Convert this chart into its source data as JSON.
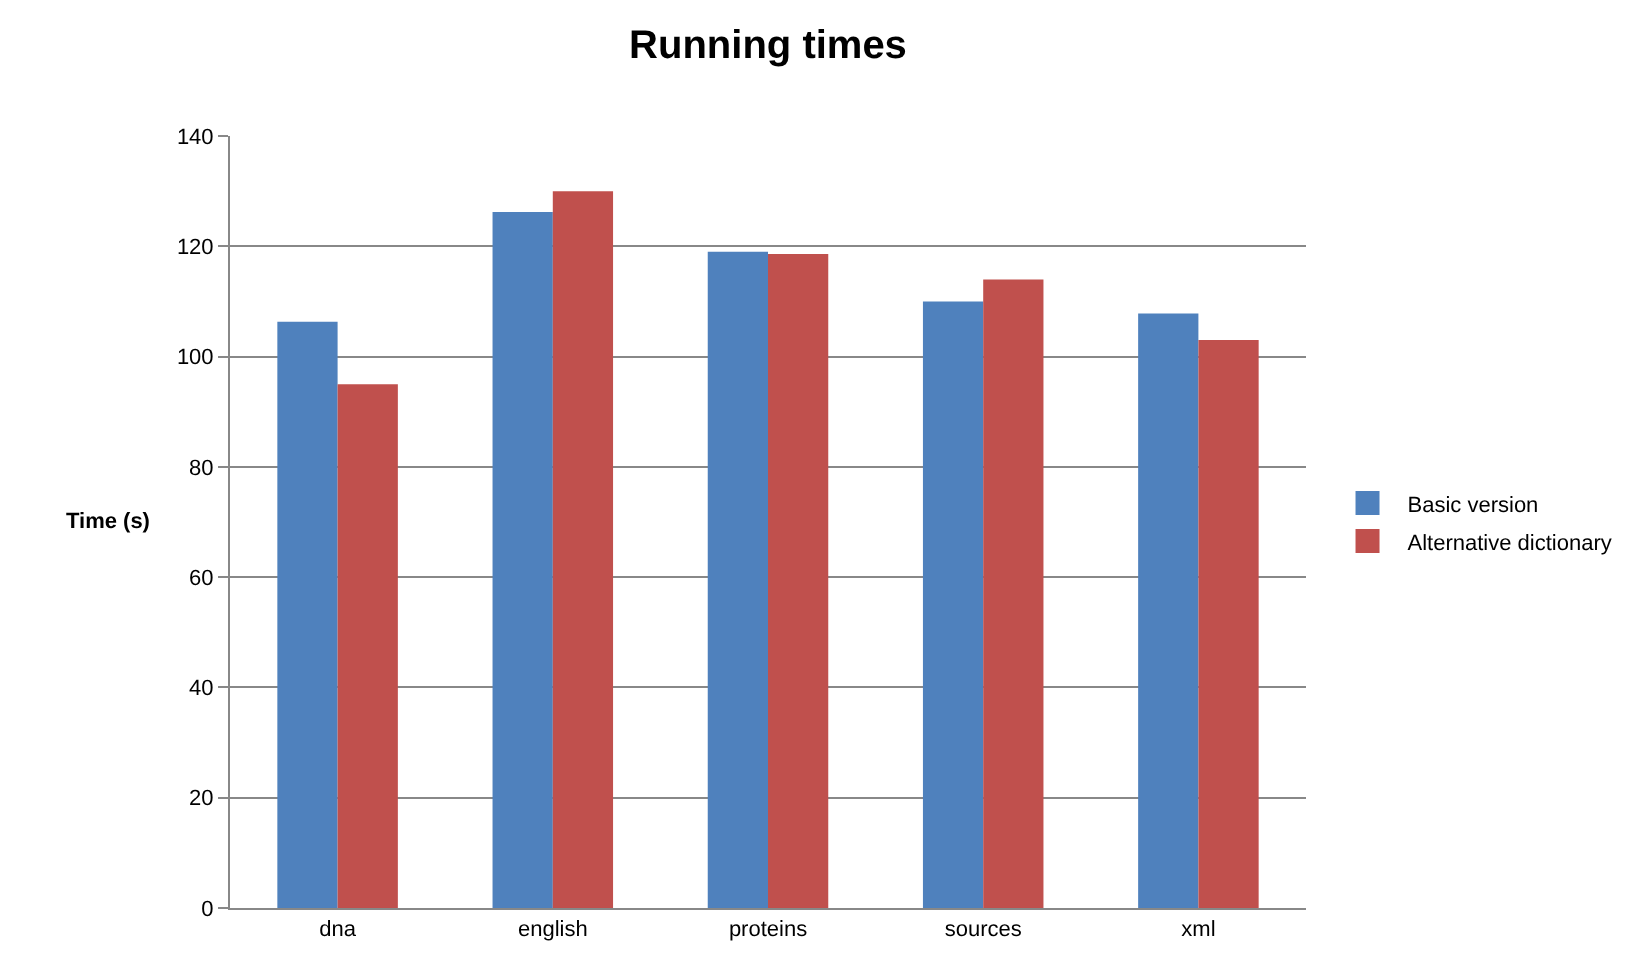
{
  "chart_data": {
    "type": "bar",
    "title": "Running times",
    "ylabel": "Time (s)",
    "categories": [
      "dna",
      "english",
      "proteins",
      "sources",
      "xml"
    ],
    "series": [
      {
        "name": "Basic version",
        "color": "#4f81bd",
        "values": [
          106.3,
          126.2,
          119,
          110,
          107.8
        ]
      },
      {
        "name": "Alternative dictionary",
        "color": "#c0504d",
        "values": [
          95,
          130,
          118.6,
          114,
          103
        ]
      }
    ],
    "ylim": [
      0,
      140
    ],
    "yticks": [
      0,
      20,
      40,
      60,
      80,
      100,
      120,
      140
    ],
    "grid": "y",
    "legend": "right"
  }
}
